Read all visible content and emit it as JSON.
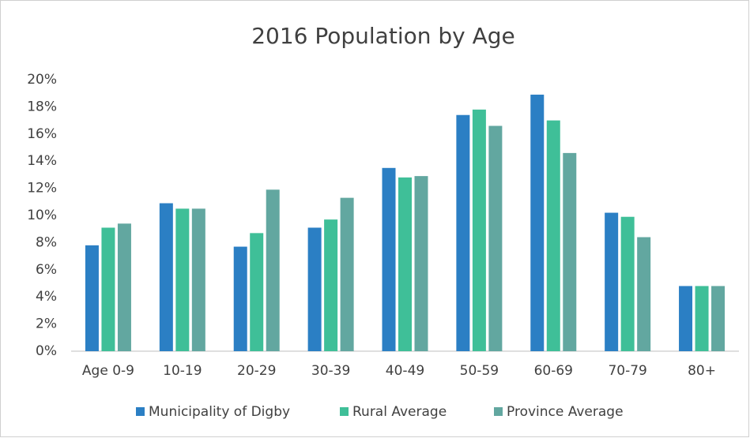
{
  "chart_data": {
    "type": "bar",
    "title": "2016 Population by Age",
    "categories": [
      "Age 0-9",
      "10-19",
      "20-29",
      "30-39",
      "40-49",
      "50-59",
      "60-69",
      "70-79",
      "80+"
    ],
    "series": [
      {
        "name": "Municipality of Digby",
        "color": "#2b7fc4",
        "values": [
          7.8,
          10.9,
          7.7,
          9.1,
          13.5,
          17.4,
          18.9,
          10.2,
          4.8
        ]
      },
      {
        "name": "Rural Average",
        "color": "#3fbf98",
        "values": [
          9.1,
          10.5,
          8.7,
          9.7,
          12.8,
          17.8,
          17.0,
          9.9,
          4.8
        ]
      },
      {
        "name": "Province Average",
        "color": "#62a7a0",
        "values": [
          9.4,
          10.5,
          11.9,
          11.3,
          12.9,
          16.6,
          14.6,
          8.4,
          4.8
        ]
      }
    ],
    "ylim": [
      0,
      20
    ],
    "yticks": [
      {
        "value": 0,
        "label": "0%"
      },
      {
        "value": 2,
        "label": "2%"
      },
      {
        "value": 4,
        "label": "4%"
      },
      {
        "value": 6,
        "label": "6%"
      },
      {
        "value": 8,
        "label": "8%"
      },
      {
        "value": 10,
        "label": "10%"
      },
      {
        "value": 12,
        "label": "12%"
      },
      {
        "value": 14,
        "label": "14%"
      },
      {
        "value": 16,
        "label": "16%"
      },
      {
        "value": 18,
        "label": "18%"
      },
      {
        "value": 20,
        "label": "20%"
      }
    ],
    "grid": false,
    "legend": "bottom"
  }
}
